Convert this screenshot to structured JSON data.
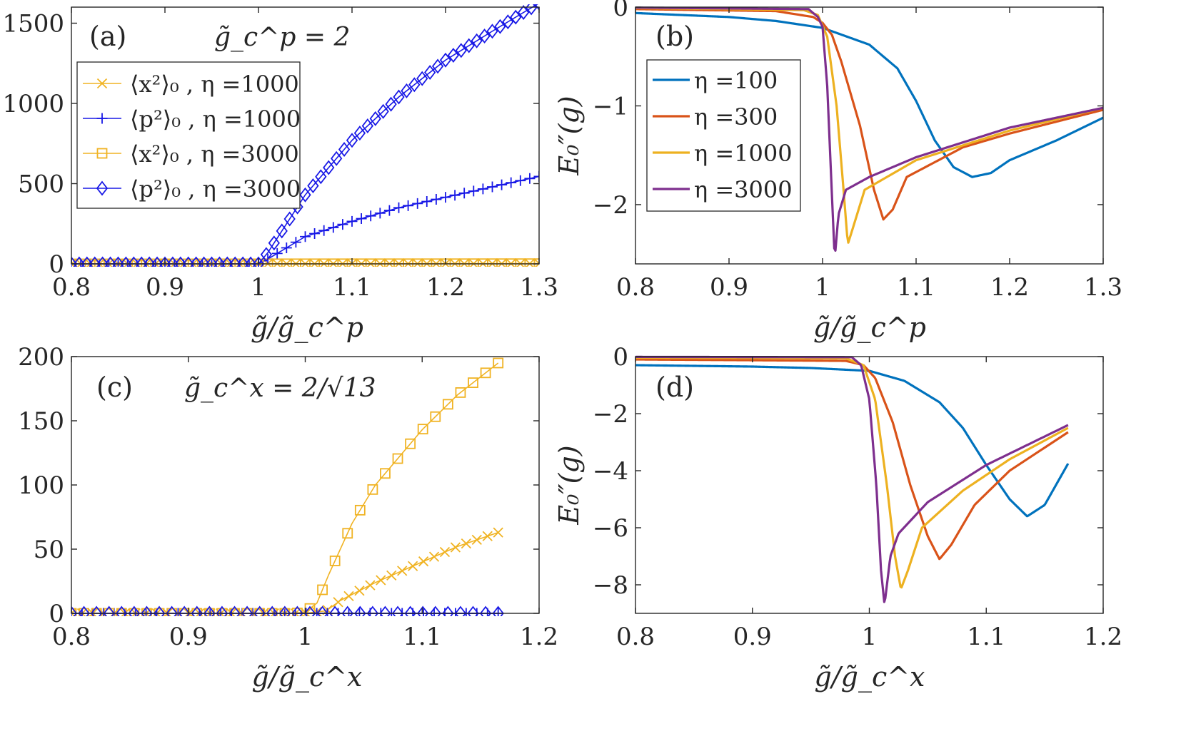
{
  "figure": {
    "background": "#ffffff",
    "axis_color": "#262626"
  },
  "chart_data": [
    {
      "type": "line",
      "panel": "(a)",
      "annotation": "g̃_c^p = 2",
      "xlabel": "g̃/g̃_c^p",
      "ylabel": "",
      "xlim": [
        0.8,
        1.3
      ],
      "ylim": [
        0,
        1600
      ],
      "xticks": [
        0.8,
        0.9,
        1,
        1.1,
        1.2,
        1.3
      ],
      "xtick_labels": [
        "0.8",
        "0.9",
        "1",
        "1.1",
        "1.2",
        "1.3"
      ],
      "yticks": [
        0,
        500,
        1000,
        1500
      ],
      "ytick_labels": [
        "0",
        "500",
        "1000",
        "1500"
      ],
      "legend_position": "top-left",
      "series": [
        {
          "name": "⟨x²⟩₀ , η =1000",
          "color": "#f0b323",
          "marker": "x",
          "x_range": [
            0.8,
            1.3
          ],
          "n_points": 51,
          "points": [
            [
              0.8,
              0
            ],
            [
              1.3,
              1.5
            ]
          ]
        },
        {
          "name": "⟨p²⟩₀ , η =1000",
          "color": "#1818e6",
          "marker": "plus",
          "x_range": [
            0.8,
            1.3
          ],
          "n_points": 51,
          "points": [
            [
              0.8,
              0
            ],
            [
              1.0,
              0
            ],
            [
              1.01,
              30
            ],
            [
              1.05,
              170
            ],
            [
              1.1,
              265
            ],
            [
              1.15,
              350
            ],
            [
              1.2,
              415
            ],
            [
              1.25,
              480
            ],
            [
              1.3,
              545
            ]
          ]
        },
        {
          "name": "⟨x²⟩₀ , η =3000",
          "color": "#f0b323",
          "marker": "square",
          "x_range": [
            0.8,
            1.3
          ],
          "n_points": 51,
          "points": [
            [
              0.8,
              0
            ],
            [
              1.3,
              1.5
            ]
          ]
        },
        {
          "name": "⟨p²⟩₀ , η =3000",
          "color": "#1818e6",
          "marker": "diamond",
          "x_range": [
            0.8,
            1.3
          ],
          "n_points": 61,
          "points": [
            [
              0.8,
              0
            ],
            [
              1.0,
              0
            ],
            [
              1.01,
              70
            ],
            [
              1.05,
              430
            ],
            [
              1.1,
              770
            ],
            [
              1.15,
              1040
            ],
            [
              1.2,
              1270
            ],
            [
              1.25,
              1450
            ],
            [
              1.3,
              1625
            ]
          ]
        }
      ]
    },
    {
      "type": "line",
      "panel": "(b)",
      "xlabel": "g̃/g̃_c^p",
      "ylabel": "E₀″(g)",
      "xlim": [
        0.8,
        1.3
      ],
      "ylim": [
        -2.6,
        0
      ],
      "xticks": [
        0.8,
        0.9,
        1,
        1.1,
        1.2,
        1.3
      ],
      "xtick_labels": [
        "0.8",
        "0.9",
        "1",
        "1.1",
        "1.2",
        "1.3"
      ],
      "yticks": [
        0,
        -1,
        -2
      ],
      "ytick_labels": [
        "0",
        "−1",
        "−2"
      ],
      "legend_position": "left",
      "series": [
        {
          "name": "η =100",
          "color": "#0072bd",
          "points": [
            [
              0.8,
              -0.06
            ],
            [
              0.9,
              -0.1
            ],
            [
              0.95,
              -0.14
            ],
            [
              1.0,
              -0.21
            ],
            [
              1.05,
              -0.38
            ],
            [
              1.08,
              -0.62
            ],
            [
              1.1,
              -0.95
            ],
            [
              1.12,
              -1.35
            ],
            [
              1.14,
              -1.62
            ],
            [
              1.16,
              -1.72
            ],
            [
              1.18,
              -1.68
            ],
            [
              1.2,
              -1.55
            ],
            [
              1.25,
              -1.35
            ],
            [
              1.3,
              -1.12
            ]
          ]
        },
        {
          "name": "η =300",
          "color": "#d95319",
          "points": [
            [
              0.8,
              -0.02
            ],
            [
              0.95,
              -0.04
            ],
            [
              0.99,
              -0.1
            ],
            [
              1.0,
              -0.16
            ],
            [
              1.01,
              -0.28
            ],
            [
              1.02,
              -0.55
            ],
            [
              1.04,
              -1.2
            ],
            [
              1.055,
              -1.85
            ],
            [
              1.065,
              -2.15
            ],
            [
              1.075,
              -2.05
            ],
            [
              1.09,
              -1.72
            ],
            [
              1.15,
              -1.42
            ],
            [
              1.2,
              -1.28
            ],
            [
              1.3,
              -1.04
            ]
          ]
        },
        {
          "name": "η =1000",
          "color": "#edb120",
          "points": [
            [
              0.8,
              -0.01
            ],
            [
              0.98,
              -0.03
            ],
            [
              0.995,
              -0.08
            ],
            [
              1.005,
              -0.3
            ],
            [
              1.015,
              -1.0
            ],
            [
              1.022,
              -1.8
            ],
            [
              1.027,
              -2.4
            ],
            [
              1.032,
              -2.25
            ],
            [
              1.045,
              -1.85
            ],
            [
              1.1,
              -1.55
            ],
            [
              1.2,
              -1.25
            ],
            [
              1.3,
              -1.02
            ]
          ]
        },
        {
          "name": "η =3000",
          "color": "#7e2f8e",
          "points": [
            [
              0.8,
              -0.005
            ],
            [
              0.985,
              -0.02
            ],
            [
              0.995,
              -0.1
            ],
            [
              1.0,
              -0.2
            ],
            [
              1.005,
              -0.8
            ],
            [
              1.01,
              -1.9
            ],
            [
              1.013,
              -2.55
            ],
            [
              1.017,
              -2.1
            ],
            [
              1.025,
              -1.85
            ],
            [
              1.05,
              -1.72
            ],
            [
              1.1,
              -1.52
            ],
            [
              1.2,
              -1.22
            ],
            [
              1.3,
              -1.02
            ]
          ]
        }
      ]
    },
    {
      "type": "line",
      "panel": "(c)",
      "annotation": "g̃_c^x = 2/√13",
      "xlabel": "g̃/g̃_c^x",
      "ylabel": "",
      "xlim": [
        0.8,
        1.2
      ],
      "ylim": [
        0,
        200
      ],
      "xticks": [
        0.8,
        0.9,
        1,
        1.1,
        1.2
      ],
      "xtick_labels": [
        "0.8",
        "0.9",
        "1",
        "1.1",
        "1.2"
      ],
      "yticks": [
        0,
        50,
        100,
        150,
        200
      ],
      "ytick_labels": [
        "0",
        "50",
        "100",
        "150",
        "200"
      ],
      "series": [
        {
          "name": "⟨x²⟩₀ , η =1000",
          "color": "#f0b323",
          "marker": "x",
          "x_range": [
            0.8,
            1.165
          ],
          "n_points": 41,
          "points": [
            [
              0.8,
              0
            ],
            [
              1.0,
              0
            ],
            [
              1.018,
              2
            ],
            [
              1.03,
              10
            ],
            [
              1.06,
              24
            ],
            [
              1.1,
              40
            ],
            [
              1.13,
              52
            ],
            [
              1.165,
              63
            ]
          ]
        },
        {
          "name": "⟨p²⟩₀ , η =1000",
          "color": "#1818e6",
          "marker": "plus",
          "x_range": [
            0.8,
            1.165
          ],
          "n_points": 41,
          "points": [
            [
              0.8,
              0
            ],
            [
              1.165,
              0
            ]
          ]
        },
        {
          "name": "⟨x²⟩₀ , η =3000",
          "color": "#f0b323",
          "marker": "square",
          "x_range": [
            0.8,
            1.165
          ],
          "n_points": 35,
          "points": [
            [
              0.8,
              0
            ],
            [
              0.99,
              0
            ],
            [
              1.0,
              1
            ],
            [
              1.01,
              8
            ],
            [
              1.02,
              30
            ],
            [
              1.04,
              70
            ],
            [
              1.06,
              100
            ],
            [
              1.1,
              143
            ],
            [
              1.13,
              170
            ],
            [
              1.165,
              195
            ]
          ]
        },
        {
          "name": "⟨p²⟩₀ , η =3000",
          "color": "#1818e6",
          "marker": "diamond",
          "x_range": [
            0.8,
            1.165
          ],
          "n_points": 35,
          "points": [
            [
              0.8,
              0
            ],
            [
              1.165,
              0
            ]
          ]
        }
      ]
    },
    {
      "type": "line",
      "panel": "(d)",
      "xlabel": "g̃/g̃_c^x",
      "ylabel": "E₀″(g)",
      "xlim": [
        0.8,
        1.2
      ],
      "ylim": [
        -9,
        0
      ],
      "xticks": [
        0.8,
        0.9,
        1,
        1.1,
        1.2
      ],
      "xtick_labels": [
        "0.8",
        "0.9",
        "1",
        "1.1",
        "1.2"
      ],
      "yticks": [
        0,
        -2,
        -4,
        -6,
        -8
      ],
      "ytick_labels": [
        "0",
        "−2",
        "−4",
        "−6",
        "−8"
      ],
      "series": [
        {
          "name": "η =100",
          "color": "#0072bd",
          "points": [
            [
              0.8,
              -0.3
            ],
            [
              0.9,
              -0.35
            ],
            [
              0.95,
              -0.4
            ],
            [
              1.0,
              -0.5
            ],
            [
              1.03,
              -0.85
            ],
            [
              1.06,
              -1.6
            ],
            [
              1.08,
              -2.5
            ],
            [
              1.1,
              -3.8
            ],
            [
              1.12,
              -5.0
            ],
            [
              1.135,
              -5.6
            ],
            [
              1.15,
              -5.2
            ],
            [
              1.17,
              -3.75
            ]
          ]
        },
        {
          "name": "η =300",
          "color": "#d95319",
          "points": [
            [
              0.8,
              -0.1
            ],
            [
              0.98,
              -0.15
            ],
            [
              0.995,
              -0.3
            ],
            [
              1.005,
              -0.75
            ],
            [
              1.02,
              -2.3
            ],
            [
              1.035,
              -4.5
            ],
            [
              1.05,
              -6.3
            ],
            [
              1.06,
              -7.1
            ],
            [
              1.07,
              -6.6
            ],
            [
              1.09,
              -5.2
            ],
            [
              1.12,
              -4.0
            ],
            [
              1.17,
              -2.65
            ]
          ]
        },
        {
          "name": "η =1000",
          "color": "#edb120",
          "points": [
            [
              0.8,
              -0.04
            ],
            [
              0.98,
              -0.06
            ],
            [
              0.995,
              -0.3
            ],
            [
              1.005,
              -1.5
            ],
            [
              1.015,
              -4.5
            ],
            [
              1.022,
              -7.0
            ],
            [
              1.027,
              -8.15
            ],
            [
              1.033,
              -7.5
            ],
            [
              1.045,
              -6.0
            ],
            [
              1.08,
              -4.7
            ],
            [
              1.12,
              -3.6
            ],
            [
              1.17,
              -2.5
            ]
          ]
        },
        {
          "name": "η =3000",
          "color": "#7e2f8e",
          "points": [
            [
              0.8,
              -0.01
            ],
            [
              0.985,
              -0.02
            ],
            [
              0.993,
              -0.3
            ],
            [
              1.0,
              -1.5
            ],
            [
              1.006,
              -4.5
            ],
            [
              1.01,
              -7.5
            ],
            [
              1.013,
              -8.7
            ],
            [
              1.018,
              -7.0
            ],
            [
              1.025,
              -6.2
            ],
            [
              1.05,
              -5.1
            ],
            [
              1.1,
              -3.8
            ],
            [
              1.17,
              -2.4
            ]
          ]
        }
      ]
    }
  ]
}
